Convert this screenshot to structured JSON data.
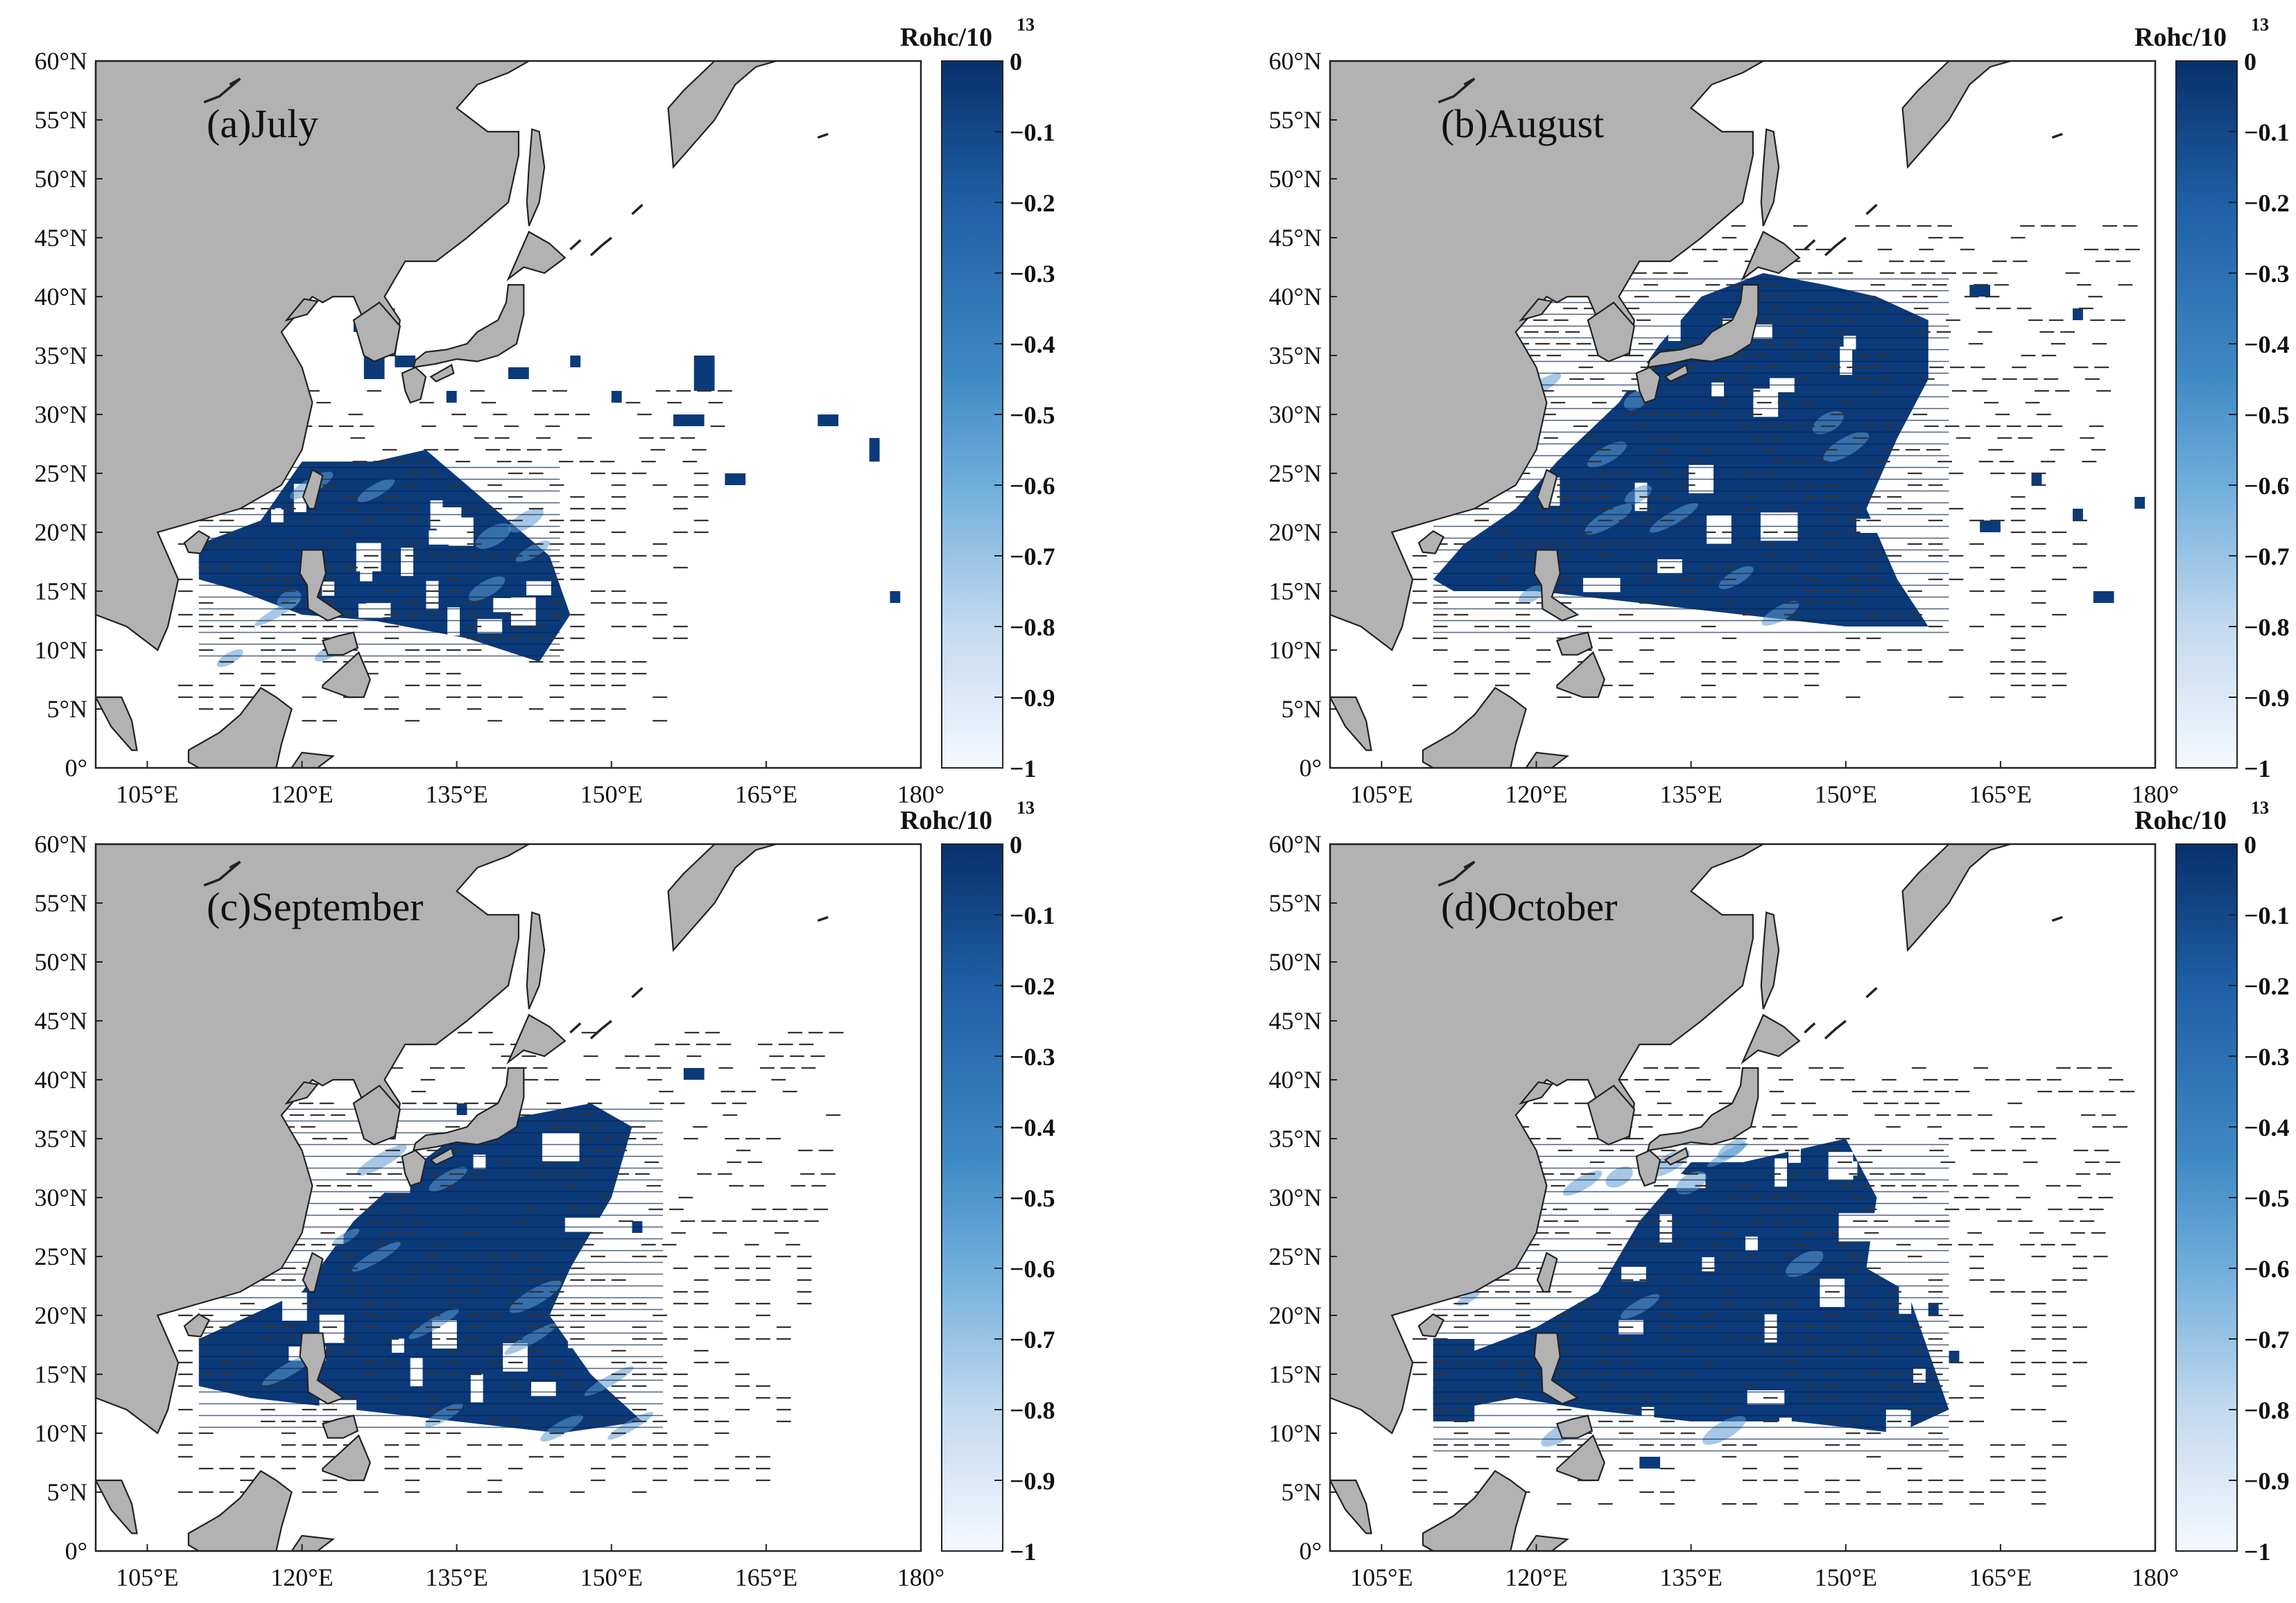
{
  "chart_data": [
    {
      "type": "heatmap",
      "title": "(a)July",
      "xticks": [
        "105°E",
        "120°E",
        "135°E",
        "150°E",
        "165°E",
        "180°"
      ],
      "yticks": [
        "0°",
        "5°N",
        "10°N",
        "15°N",
        "20°N",
        "25°N",
        "30°N",
        "35°N",
        "40°N",
        "45°N",
        "50°N",
        "55°N",
        "60°N"
      ],
      "xlim": [
        100,
        180
      ],
      "ylim": [
        0,
        60
      ],
      "colorbar": {
        "label": "Rohc/10",
        "exponent": "13",
        "ticks": [
          "0",
          "-0.1",
          "-0.2",
          "-0.3",
          "-0.4",
          "-0.5",
          "-0.6",
          "-0.7",
          "-0.8",
          "-0.9",
          "-1"
        ],
        "range": [
          -1,
          0
        ]
      },
      "colors": {
        "dark": "#0b3a7a",
        "light": "#f4f8fd",
        "land": "#b2b2b2",
        "coast": "#222222",
        "hatch": "#333333"
      },
      "region": {
        "lon": [
          110,
          145
        ],
        "lat": [
          9,
          26
        ],
        "polygon": [
          [
            110,
            19
          ],
          [
            116,
            21
          ],
          [
            120,
            26
          ],
          [
            127,
            26
          ],
          [
            132,
            27
          ],
          [
            136,
            24
          ],
          [
            140,
            21
          ],
          [
            144,
            18
          ],
          [
            146,
            13
          ],
          [
            143,
            9
          ],
          [
            136,
            11
          ],
          [
            127,
            12.5
          ],
          [
            120,
            13
          ],
          [
            114,
            15
          ],
          [
            110,
            16
          ]
        ],
        "extra_blocks": [
          [
            126,
            33,
            2,
            2
          ],
          [
            129,
            34,
            2,
            1
          ],
          [
            134,
            31,
            1,
            1
          ],
          [
            140,
            33,
            2,
            1
          ],
          [
            146,
            34,
            1,
            1
          ],
          [
            150,
            31,
            1,
            1
          ],
          [
            156,
            29,
            3,
            1
          ],
          [
            158,
            32,
            2,
            3
          ],
          [
            161,
            24,
            2,
            1
          ],
          [
            170,
            29,
            2,
            1
          ],
          [
            175,
            26,
            1,
            2
          ],
          [
            177,
            14,
            1,
            1
          ],
          [
            125,
            37,
            1,
            1
          ],
          [
            128,
            38,
            1,
            1
          ]
        ]
      }
    },
    {
      "type": "heatmap",
      "title": "(b)August",
      "xticks": [
        "105°E",
        "120°E",
        "135°E",
        "150°E",
        "165°E",
        "180°"
      ],
      "yticks": [
        "0°",
        "5°N",
        "10°N",
        "15°N",
        "20°N",
        "25°N",
        "30°N",
        "35°N",
        "40°N",
        "45°N",
        "50°N",
        "55°N",
        "60°N"
      ],
      "xlim": [
        100,
        180
      ],
      "ylim": [
        0,
        60
      ],
      "colorbar": {
        "label": "Rohc/10",
        "exponent": "13",
        "ticks": [
          "0",
          "-0.1",
          "-0.2",
          "-0.3",
          "-0.4",
          "-0.5",
          "-0.6",
          "-0.7",
          "-0.8",
          "-0.9",
          "-1"
        ],
        "range": [
          -1,
          0
        ]
      },
      "colors": {
        "dark": "#0b3a7a",
        "light": "#f4f8fd",
        "land": "#b2b2b2",
        "coast": "#222222",
        "hatch": "#333333"
      },
      "region": {
        "lon": [
          110,
          160
        ],
        "lat": [
          11,
          42
        ],
        "polygon": [
          [
            110,
            16
          ],
          [
            113,
            19
          ],
          [
            118,
            22
          ],
          [
            122,
            26
          ],
          [
            128,
            31
          ],
          [
            132,
            36
          ],
          [
            136,
            40
          ],
          [
            142,
            42
          ],
          [
            148,
            41
          ],
          [
            153,
            40
          ],
          [
            158,
            38
          ],
          [
            158,
            33
          ],
          [
            155,
            28
          ],
          [
            152,
            22
          ],
          [
            155,
            16
          ],
          [
            158,
            12
          ],
          [
            150,
            12
          ],
          [
            140,
            13
          ],
          [
            130,
            14
          ],
          [
            120,
            15
          ],
          [
            112,
            15
          ]
        ],
        "extra_blocks": [
          [
            168,
            24,
            1,
            1
          ],
          [
            172,
            21,
            1,
            1
          ],
          [
            178,
            22,
            1,
            1
          ],
          [
            174,
            14,
            2,
            1
          ],
          [
            163,
            20,
            2,
            1
          ],
          [
            172,
            38,
            1,
            1
          ],
          [
            162,
            40,
            2,
            1
          ]
        ]
      }
    },
    {
      "type": "heatmap",
      "title": "(c)September",
      "xticks": [
        "105°E",
        "120°E",
        "135°E",
        "150°E",
        "165°E",
        "180°"
      ],
      "yticks": [
        "0°",
        "5°N",
        "10°N",
        "15°N",
        "20°N",
        "25°N",
        "30°N",
        "35°N",
        "40°N",
        "45°N",
        "50°N",
        "55°N",
        "60°N"
      ],
      "xlim": [
        100,
        180
      ],
      "ylim": [
        0,
        60
      ],
      "colorbar": {
        "label": "Rohc/10",
        "exponent": "13",
        "ticks": [
          "0",
          "-0.1",
          "-0.2",
          "-0.3",
          "-0.4",
          "-0.5",
          "-0.6",
          "-0.7",
          "-0.8",
          "-0.9",
          "-1"
        ],
        "range": [
          -1,
          0
        ]
      },
      "colors": {
        "dark": "#0b3a7a",
        "light": "#f4f8fd",
        "land": "#b2b2b2",
        "coast": "#222222",
        "hatch": "#333333"
      },
      "region": {
        "lon": [
          110,
          155
        ],
        "lat": [
          10,
          38
        ],
        "polygon": [
          [
            110,
            18
          ],
          [
            115,
            20
          ],
          [
            120,
            22
          ],
          [
            125,
            28
          ],
          [
            130,
            32
          ],
          [
            136,
            36
          ],
          [
            142,
            37
          ],
          [
            148,
            38
          ],
          [
            152,
            36
          ],
          [
            150,
            30
          ],
          [
            146,
            24
          ],
          [
            144,
            20
          ],
          [
            148,
            15
          ],
          [
            153,
            11
          ],
          [
            145,
            10
          ],
          [
            135,
            11
          ],
          [
            125,
            12
          ],
          [
            115,
            13
          ],
          [
            110,
            14
          ]
        ],
        "extra_blocks": [
          [
            126,
            36,
            1,
            1
          ],
          [
            135,
            37,
            1,
            1
          ],
          [
            157,
            40,
            2,
            1
          ],
          [
            152,
            27,
            1,
            1
          ]
        ]
      }
    },
    {
      "type": "heatmap",
      "title": "(d)October",
      "xticks": [
        "105°E",
        "120°E",
        "135°E",
        "150°E",
        "165°E",
        "180°"
      ],
      "yticks": [
        "0°",
        "5°N",
        "10°N",
        "15°N",
        "20°N",
        "25°N",
        "30°N",
        "35°N",
        "40°N",
        "45°N",
        "50°N",
        "55°N",
        "60°N"
      ],
      "xlim": [
        100,
        180
      ],
      "ylim": [
        0,
        60
      ],
      "colorbar": {
        "label": "Rohc/10",
        "exponent": "13",
        "ticks": [
          "0",
          "-0.1",
          "-0.2",
          "-0.3",
          "-0.4",
          "-0.5",
          "-0.6",
          "-0.7",
          "-0.8",
          "-0.9",
          "-1"
        ],
        "range": [
          -1,
          0
        ]
      },
      "colors": {
        "dark": "#0b3a7a",
        "light": "#f4f8fd",
        "land": "#b2b2b2",
        "coast": "#222222",
        "hatch": "#333333"
      },
      "region": {
        "lon": [
          110,
          160
        ],
        "lat": [
          8,
          35
        ],
        "polygon": [
          [
            110,
            14
          ],
          [
            114,
            17
          ],
          [
            120,
            19
          ],
          [
            126,
            22
          ],
          [
            130,
            28
          ],
          [
            135,
            33
          ],
          [
            140,
            33
          ],
          [
            145,
            34
          ],
          [
            150,
            35
          ],
          [
            153,
            30
          ],
          [
            152,
            24
          ],
          [
            156,
            22
          ],
          [
            158,
            17
          ],
          [
            160,
            12
          ],
          [
            155,
            10
          ],
          [
            145,
            11
          ],
          [
            135,
            11
          ],
          [
            125,
            12
          ],
          [
            118,
            13
          ],
          [
            112,
            12
          ],
          [
            110,
            12
          ]
        ],
        "extra_blocks": [
          [
            110,
            11,
            4,
            7
          ],
          [
            158,
            20,
            1,
            1
          ],
          [
            160,
            16,
            1,
            1
          ],
          [
            130,
            7,
            2,
            1
          ]
        ]
      }
    }
  ]
}
